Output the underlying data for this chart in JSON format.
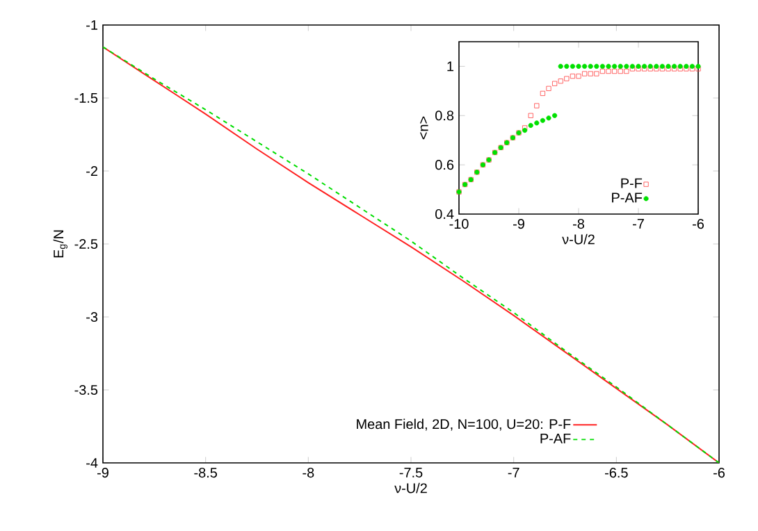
{
  "chart_data": [
    {
      "type": "line",
      "xlabel": "ν-U/2",
      "ylabel": "E$_{g}$/N",
      "xlim": [
        -9,
        -6
      ],
      "ylim": [
        -4,
        -1
      ],
      "xticks": [
        -9,
        -8.5,
        -8,
        -7.5,
        -7,
        -6.5,
        -6
      ],
      "yticks": [
        -4,
        -3.5,
        -3,
        -2.5,
        -2,
        -1.5,
        -1
      ],
      "legend": "bottom right",
      "grid": false,
      "series": [
        {
          "name": "Mean Field, 2D, N=100, U=20: P-F",
          "color": "#ff2020",
          "line_style": "solid",
          "x": [
            -9,
            -8.75,
            -8.5,
            -8.25,
            -8,
            -7.75,
            -7.5,
            -7.25,
            -7,
            -6.75,
            -6.5,
            -6.25,
            -6
          ],
          "values": [
            -1.15,
            -1.38,
            -1.61,
            -1.85,
            -2.08,
            -2.3,
            -2.52,
            -2.75,
            -2.99,
            -3.24,
            -3.49,
            -3.74,
            -4.0
          ]
        },
        {
          "name": "P-AF",
          "color": "#00dd00",
          "line_style": "dashed",
          "x": [
            -9,
            -8.75,
            -8.5,
            -8.25,
            -8,
            -7.75,
            -7.5,
            -7.25,
            -7,
            -6.75,
            -6.5,
            -6.25,
            -6
          ],
          "values": [
            -1.15,
            -1.37,
            -1.58,
            -1.8,
            -2.02,
            -2.25,
            -2.48,
            -2.73,
            -2.97,
            -3.23,
            -3.48,
            -3.74,
            -4.0
          ]
        }
      ]
    },
    {
      "type": "scatter",
      "xlabel": "ν-U/2",
      "ylabel": "<n>",
      "xlim": [
        -10,
        -6
      ],
      "ylim": [
        0.4,
        1.1
      ],
      "xticks": [
        -10,
        -9,
        -8,
        -7,
        -6
      ],
      "yticks": [
        0.4,
        0.6,
        0.8,
        1
      ],
      "legend": "bottom right",
      "grid": false,
      "series": [
        {
          "name": "P-F",
          "color": "#ff4040",
          "marker": "square",
          "x": [
            -10,
            -9.9,
            -9.8,
            -9.7,
            -9.6,
            -9.5,
            -9.4,
            -9.3,
            -9.2,
            -9.1,
            -9,
            -8.9,
            -8.8,
            -8.7,
            -8.6,
            -8.5,
            -8.4,
            -8.3,
            -8.2,
            -8.1,
            -8,
            -7.9,
            -7.8,
            -7.7,
            -7.6,
            -7.5,
            -7.4,
            -7.3,
            -7.2,
            -7.1,
            -7,
            -6.9,
            -6.8,
            -6.7,
            -6.6,
            -6.5,
            -6.4,
            -6.3,
            -6.2,
            -6.1,
            -6
          ],
          "values": [
            0.49,
            0.52,
            0.54,
            0.57,
            0.6,
            0.62,
            0.65,
            0.67,
            0.69,
            0.71,
            0.73,
            0.75,
            0.8,
            0.84,
            0.89,
            0.91,
            0.93,
            0.94,
            0.95,
            0.96,
            0.96,
            0.97,
            0.97,
            0.97,
            0.98,
            0.98,
            0.98,
            0.98,
            0.98,
            0.99,
            0.99,
            0.99,
            0.99,
            0.99,
            0.99,
            0.99,
            0.99,
            0.99,
            0.99,
            0.99,
            0.99
          ]
        },
        {
          "name": "P-AF",
          "color": "#00e000",
          "marker": "circle",
          "x": [
            -10,
            -9.9,
            -9.8,
            -9.7,
            -9.6,
            -9.5,
            -9.4,
            -9.3,
            -9.2,
            -9.1,
            -9,
            -8.9,
            -8.8,
            -8.7,
            -8.6,
            -8.5,
            -8.4,
            -8.3,
            -8.2,
            -8.1,
            -8,
            -7.9,
            -7.8,
            -7.7,
            -7.6,
            -7.5,
            -7.4,
            -7.3,
            -7.2,
            -7.1,
            -7,
            -6.9,
            -6.8,
            -6.7,
            -6.6,
            -6.5,
            -6.4,
            -6.3,
            -6.2,
            -6.1,
            -6
          ],
          "values": [
            0.49,
            0.52,
            0.54,
            0.57,
            0.6,
            0.62,
            0.65,
            0.67,
            0.69,
            0.71,
            0.73,
            0.74,
            0.76,
            0.77,
            0.78,
            0.79,
            0.8,
            1,
            1,
            1,
            1,
            1,
            1,
            1,
            1,
            1,
            1,
            1,
            1,
            1,
            1,
            1,
            1,
            1,
            1,
            1,
            1,
            1,
            1,
            1,
            1
          ]
        }
      ]
    }
  ]
}
